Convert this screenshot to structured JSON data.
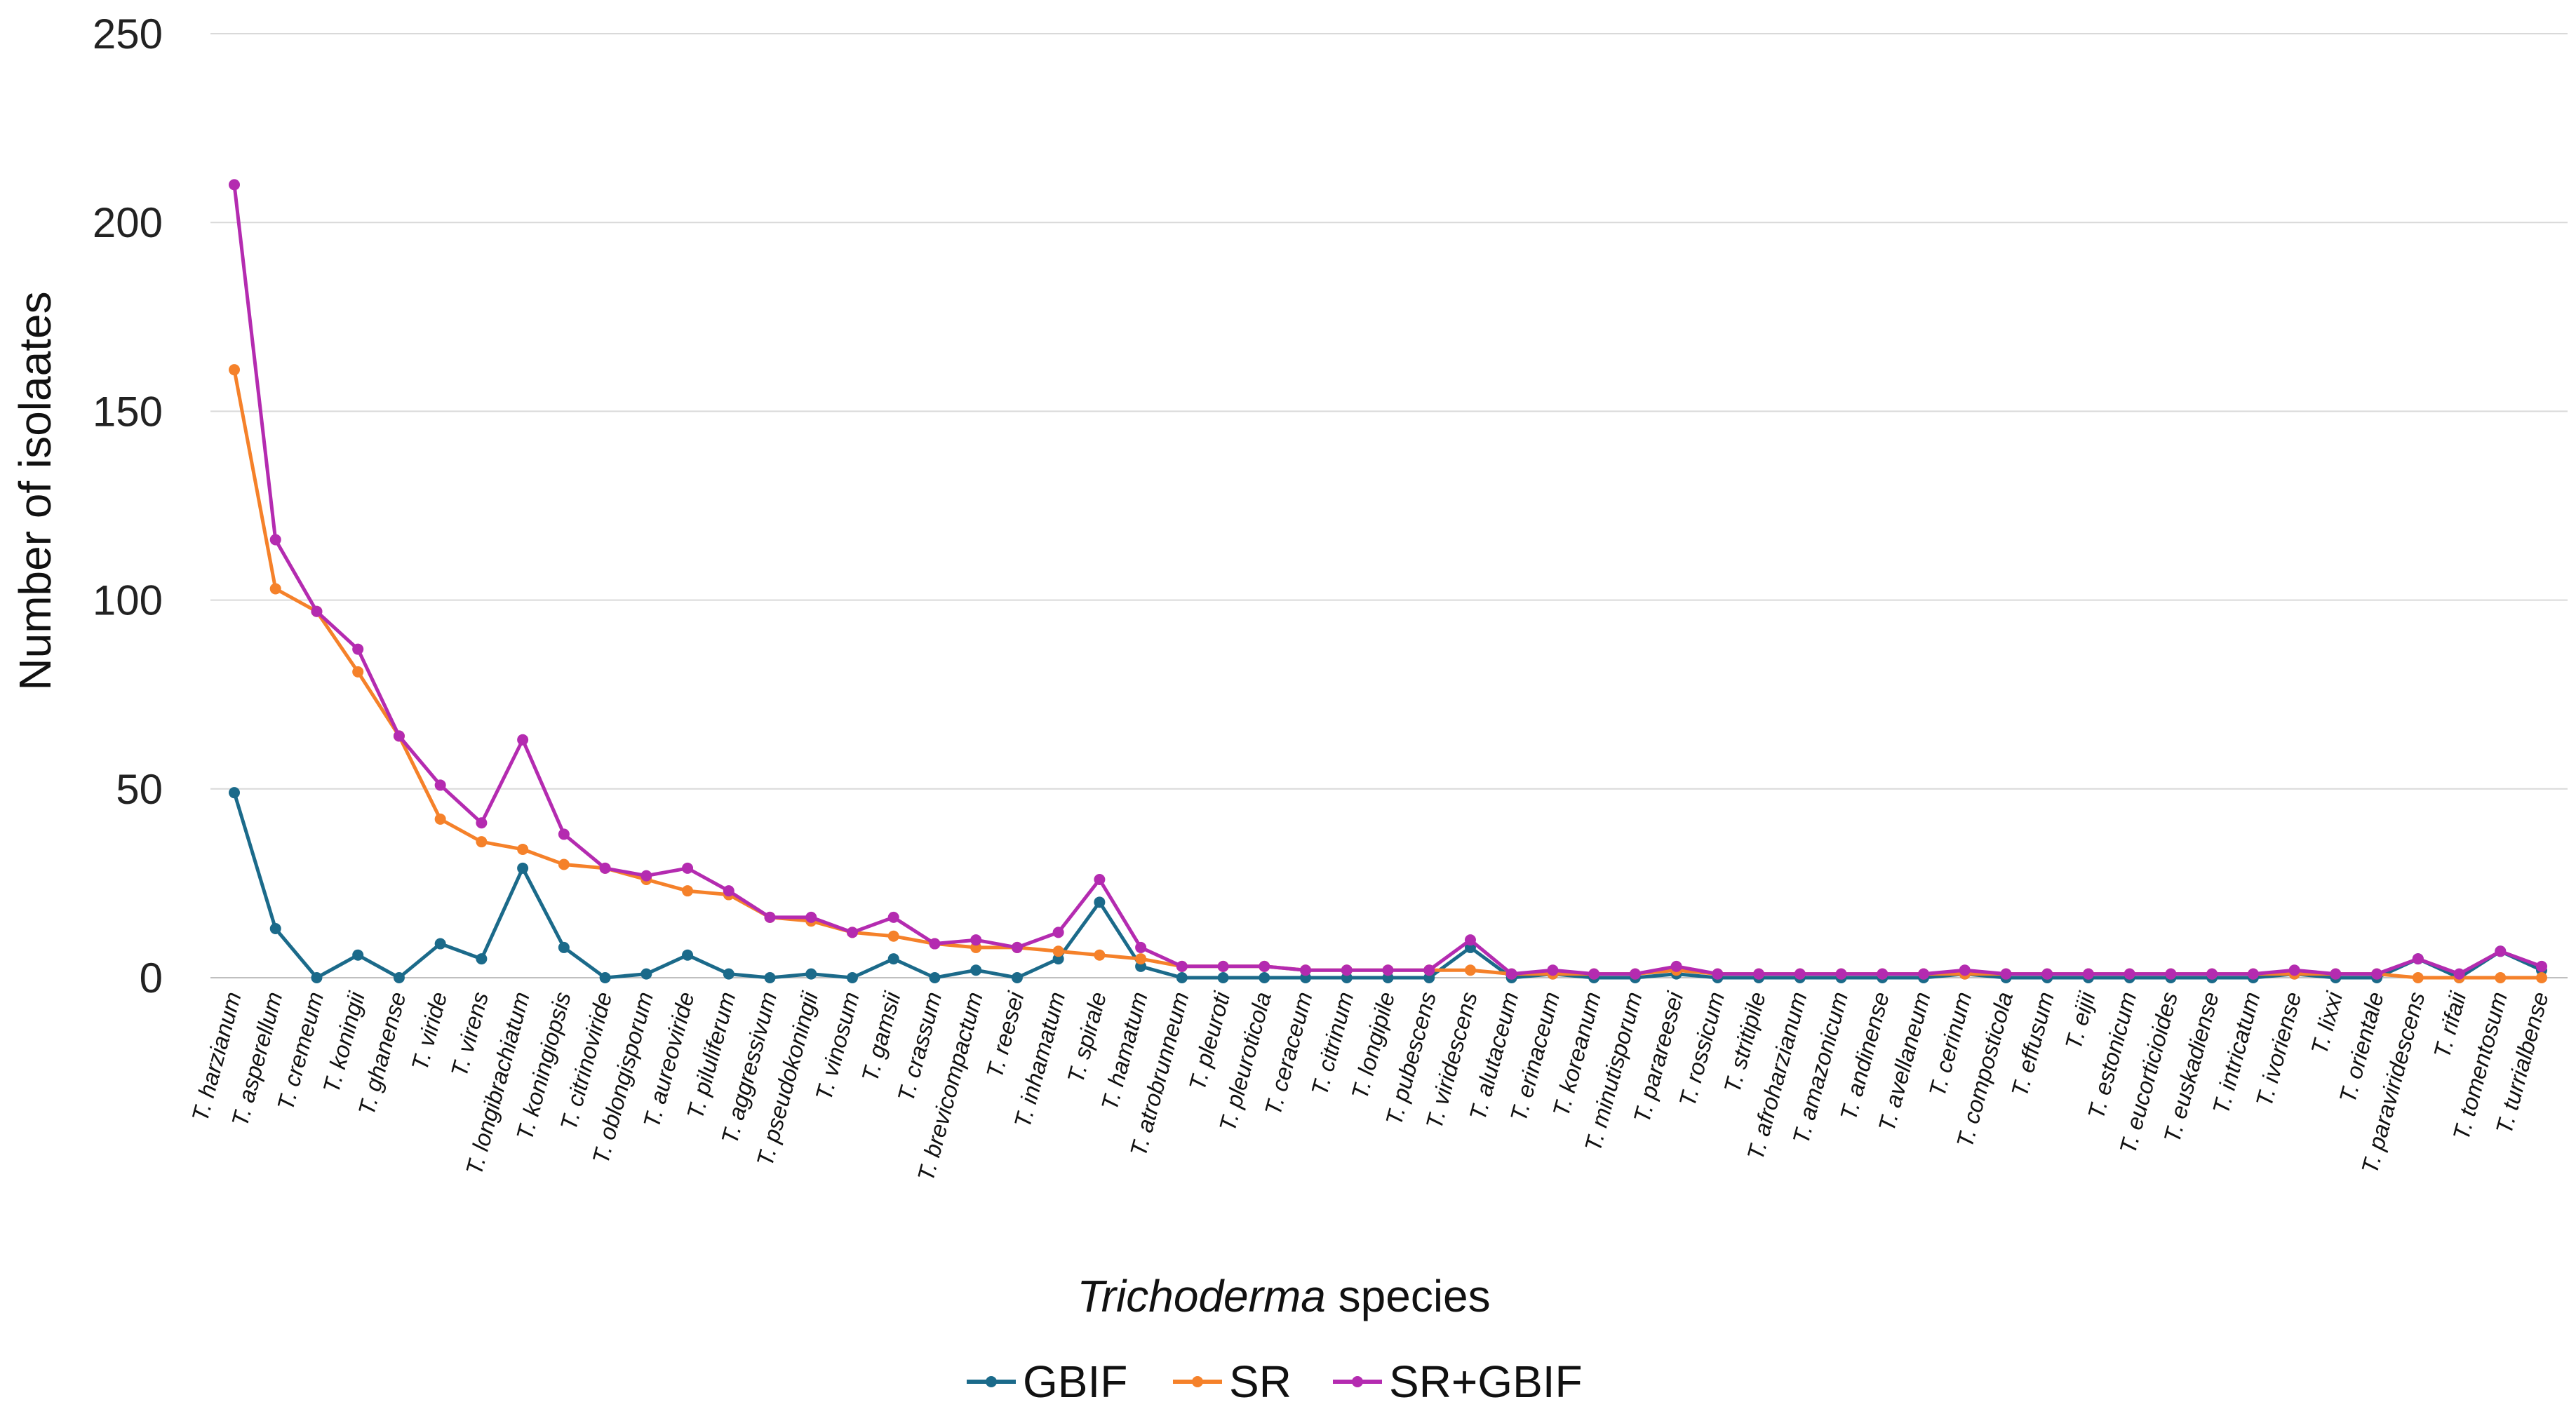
{
  "chart_data": {
    "type": "line",
    "title": "",
    "xlabel_italic": "Trichoderma",
    "xlabel_rest": " species",
    "ylabel": "Number of isolaates",
    "ylim": [
      0,
      250
    ],
    "yticks": [
      0,
      50,
      100,
      150,
      200,
      250
    ],
    "grid": true,
    "legend_position": "bottom",
    "categories": [
      "T. harzianum",
      "T. asperellum",
      "T. cremeum",
      "T. koningii",
      "T. ghanense",
      "T. viride",
      "T. virens",
      "T. longibrachiatum",
      "T. koningiopsis",
      "T. citrinoviride",
      "T. oblongisporum",
      "T. aureoviride",
      "T. piluliferum",
      "T. aggressivum",
      "T. pseudokoningii",
      "T. vinosum",
      "T. gamsii",
      "T. crassum",
      "T. brevicompactum",
      "T. reesei",
      "T. inhamatum",
      "T. spirale",
      "T. hamatum",
      "T. atrobrunneum",
      "T. pleuroti",
      "T. pleuroticola",
      "T. ceraceum",
      "T. citrinum",
      "T. longipile",
      "T. pubescens",
      "T. viridescens",
      "T. alutaceum",
      "T. erinaceum",
      "T. koreanum",
      "T. minutisporum",
      "T. parareesei",
      "T. rossicum",
      "T. stritipile",
      "T. afroharzianum",
      "T. amazonicum",
      "T. andinense",
      "T. avellaneum",
      "T. cerinum",
      "T. composticola",
      "T. effusum",
      "T. eijii",
      "T. estonicum",
      "T. eucorticioides",
      "T. euskadiense",
      "T. intricatum",
      "T. ivoriense",
      "T. lixxi",
      "T. orientale",
      "T. paraviridescens",
      "T. rifaii",
      "T. tomentosum",
      "T. turrialbense"
    ],
    "series": [
      {
        "name": "GBIF",
        "color": "#1b6a8a",
        "values": [
          49,
          13,
          0,
          6,
          0,
          9,
          5,
          29,
          8,
          0,
          1,
          6,
          1,
          0,
          1,
          0,
          5,
          0,
          2,
          0,
          5,
          20,
          3,
          0,
          0,
          0,
          0,
          0,
          0,
          0,
          8,
          0,
          1,
          0,
          0,
          1,
          0,
          0,
          0,
          0,
          0,
          0,
          1,
          0,
          0,
          0,
          0,
          0,
          0,
          0,
          1,
          0,
          0,
          5,
          0,
          7,
          2
        ]
      },
      {
        "name": "SR",
        "color": "#f5812a",
        "values": [
          161,
          103,
          97,
          81,
          64,
          42,
          36,
          34,
          30,
          29,
          26,
          23,
          22,
          16,
          15,
          12,
          11,
          9,
          8,
          8,
          7,
          6,
          5,
          3,
          3,
          3,
          2,
          2,
          2,
          2,
          2,
          1,
          1,
          1,
          1,
          2,
          1,
          1,
          1,
          1,
          1,
          1,
          1,
          1,
          1,
          1,
          1,
          1,
          1,
          1,
          1,
          1,
          1,
          0,
          0,
          0,
          0
        ]
      },
      {
        "name": "SR+GBIF",
        "color": "#b42bb0",
        "values": [
          210,
          116,
          97,
          87,
          64,
          51,
          41,
          63,
          38,
          29,
          27,
          29,
          23,
          16,
          16,
          12,
          16,
          9,
          10,
          8,
          12,
          26,
          8,
          3,
          3,
          3,
          2,
          2,
          2,
          2,
          10,
          1,
          2,
          1,
          1,
          3,
          1,
          1,
          1,
          1,
          1,
          1,
          2,
          1,
          1,
          1,
          1,
          1,
          1,
          1,
          2,
          1,
          1,
          5,
          1,
          7,
          3
        ]
      }
    ]
  }
}
